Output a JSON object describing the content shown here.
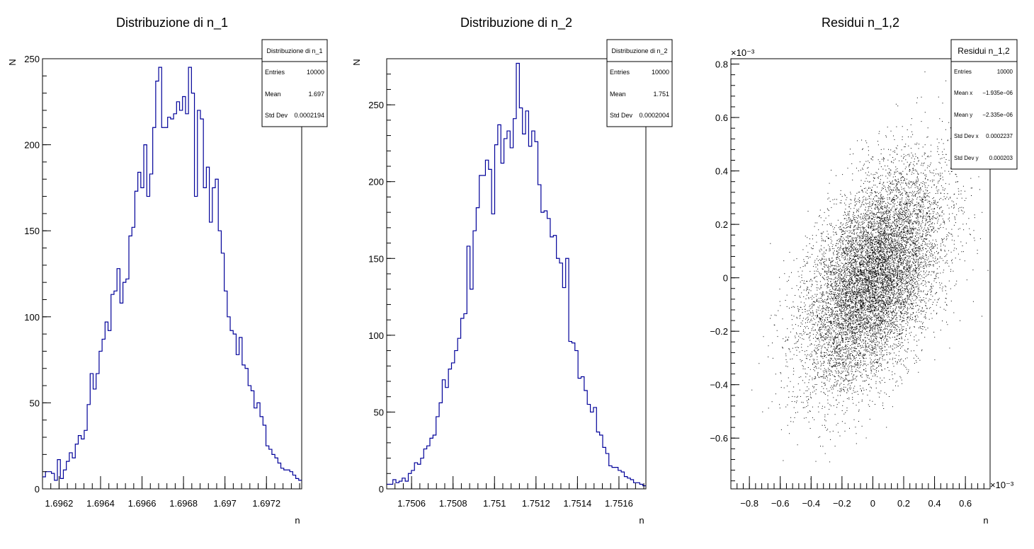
{
  "colors": {
    "hist_line": "#000099",
    "axis": "#000000",
    "points": "#000000",
    "background": "#ffffff"
  },
  "chart_data": [
    {
      "type": "histogram",
      "title": "Distribuzione di n_1",
      "xlabel": "n",
      "ylabel": "N",
      "xlim": [
        1.69612,
        1.69737
      ],
      "ylim": [
        0,
        250
      ],
      "xticks": [
        1.6962,
        1.6964,
        1.6966,
        1.6968,
        1.697,
        1.6972
      ],
      "xtick_labels": [
        "1.6962",
        "1.6964",
        "1.6966",
        "1.6968",
        "1.697",
        "1.6972"
      ],
      "yticks": [
        0,
        50,
        100,
        150,
        200,
        250
      ],
      "bins": 100,
      "values": [
        7,
        10,
        10,
        9,
        5,
        17,
        6,
        11,
        16,
        21,
        18,
        26,
        31,
        29,
        34,
        49,
        67,
        58,
        67,
        80,
        87,
        97,
        92,
        113,
        115,
        128,
        108,
        120,
        122,
        147,
        152,
        173,
        184,
        175,
        200,
        170,
        183,
        210,
        237,
        245,
        210,
        210,
        216,
        215,
        218,
        225,
        220,
        228,
        218,
        245,
        230,
        170,
        220,
        215,
        175,
        187,
        155,
        175,
        180,
        150,
        137,
        115,
        100,
        92,
        90,
        78,
        88,
        72,
        70,
        60,
        57,
        47,
        50,
        42,
        37,
        25,
        23,
        20,
        18,
        15,
        12,
        11,
        11,
        10,
        8,
        6,
        5
      ],
      "stats": {
        "title": "Distribuzione di n_1",
        "rows": [
          {
            "label": "Entries",
            "value": "10000"
          },
          {
            "label": "Mean",
            "value": "1.697"
          },
          {
            "label": "Std Dev",
            "value": "0.0002194"
          }
        ]
      }
    },
    {
      "type": "histogram",
      "title": "Distribuzione di n_2",
      "xlabel": "n",
      "ylabel": "N",
      "xlim": [
        1.75048,
        1.75173
      ],
      "ylim": [
        0,
        280
      ],
      "xticks": [
        1.7506,
        1.7508,
        1.751,
        1.7512,
        1.7514,
        1.7516
      ],
      "xtick_labels": [
        "1.7506",
        "1.7508",
        "1.751",
        "1.7512",
        "1.7514",
        "1.7516"
      ],
      "yticks": [
        0,
        50,
        100,
        150,
        200,
        250
      ],
      "bins": 100,
      "values": [
        3,
        3,
        6,
        4,
        5,
        7,
        5,
        10,
        12,
        17,
        16,
        20,
        26,
        28,
        33,
        35,
        47,
        56,
        71,
        66,
        78,
        82,
        90,
        98,
        111,
        114,
        158,
        130,
        168,
        183,
        204,
        204,
        214,
        208,
        179,
        224,
        237,
        212,
        228,
        233,
        222,
        241,
        277,
        248,
        231,
        246,
        223,
        233,
        226,
        198,
        180,
        181,
        176,
        164,
        165,
        150,
        147,
        131,
        150,
        96,
        95,
        90,
        72,
        73,
        64,
        55,
        50,
        53,
        37,
        35,
        27,
        23,
        15,
        14,
        14,
        12,
        11,
        8,
        7,
        6,
        4,
        4,
        3,
        2
      ],
      "stats": {
        "title": "Distribuzione di n_2",
        "rows": [
          {
            "label": "Entries",
            "value": "10000"
          },
          {
            "label": "Mean",
            "value": "1.751"
          },
          {
            "label": "Std Dev",
            "value": "0.0002004"
          }
        ]
      }
    },
    {
      "type": "scatter",
      "title": "Residui n_1,2",
      "xlabel": "n",
      "ylabel": "",
      "xlim": [
        -0.00092,
        0.00076
      ],
      "ylim": [
        -0.00079,
        0.00082
      ],
      "xaxis_exponent": "×10⁻³",
      "yaxis_exponent": "×10⁻³",
      "xticks": [
        -0.0008,
        -0.0006,
        -0.0004,
        -0.0002,
        0,
        0.0002,
        0.0004,
        0.0006
      ],
      "xtick_labels": [
        "−0.8",
        "−0.6",
        "−0.4",
        "−0.2",
        "0",
        "0.2",
        "0.4",
        "0.6"
      ],
      "yticks": [
        -0.0006,
        -0.0004,
        -0.0002,
        0,
        0.0002,
        0.0004,
        0.0006,
        0.0008
      ],
      "ytick_labels": [
        "−0.6",
        "−0.4",
        "−0.2",
        "0",
        "0.2",
        "0.4",
        "0.6",
        "0.8"
      ],
      "n_points": 10000,
      "std_x": 0.0002237,
      "std_y": 0.000203,
      "correlation": 0.5,
      "stats": {
        "title": "Residui n_1,2",
        "rows": [
          {
            "label": "Entries",
            "value": "10000"
          },
          {
            "label": "Mean x",
            "value": "−1.935e−06"
          },
          {
            "label": "Mean y",
            "value": "−2.335e−06"
          },
          {
            "label": "Std Dev x",
            "value": "0.0002237"
          },
          {
            "label": "Std Dev y",
            "value": "0.000203"
          }
        ]
      }
    }
  ]
}
